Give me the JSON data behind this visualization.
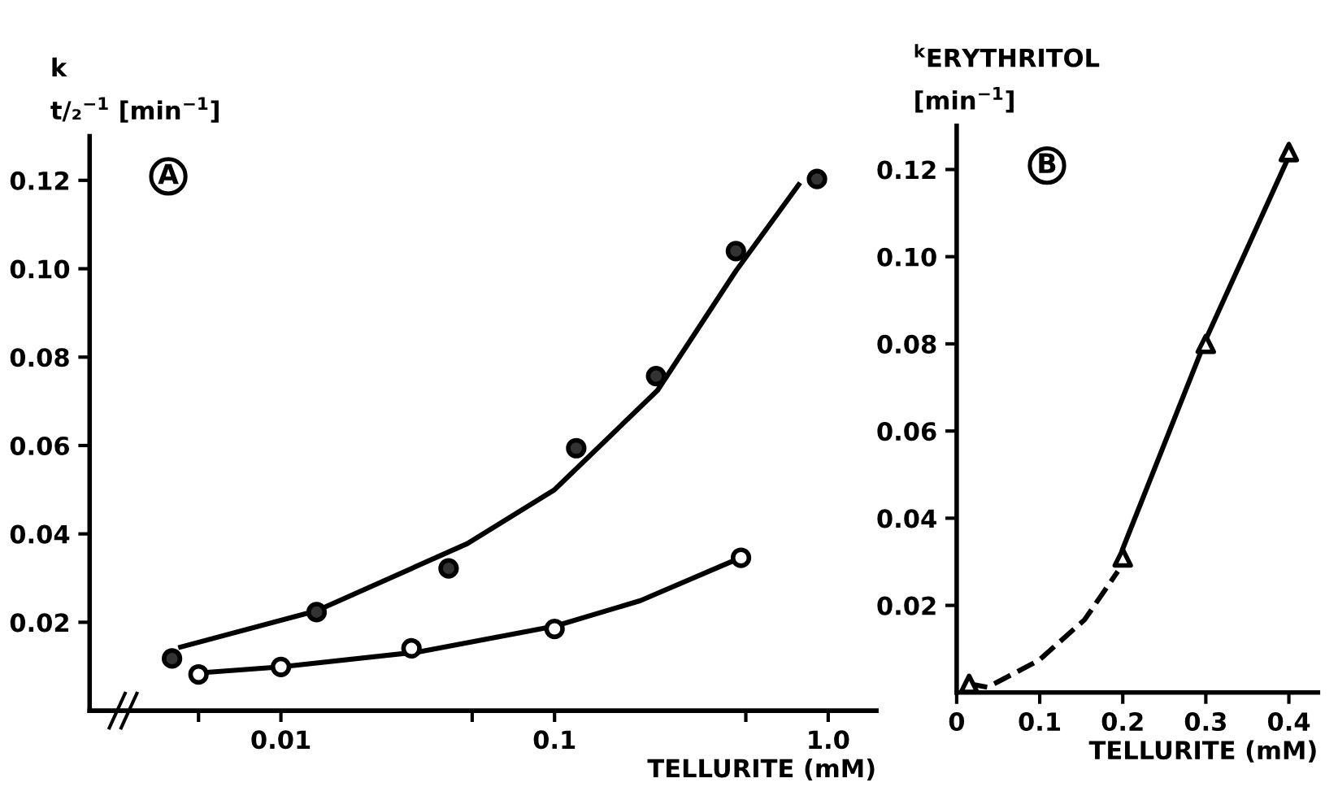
{
  "chart_data": [
    {
      "type": "scatter",
      "xlabel": "TELLURITE (mM)",
      "ylabel": "k\nt/₂$^{−1}$ [min$^{−1}$]",
      "annotations": [
        "A"
      ],
      "log": "x",
      "xlim": [
        0.002,
        1.5
      ],
      "xticks": [
        {
          "value": 0.005,
          "label": null
        },
        0.01,
        {
          "value": 0.05,
          "label": null
        },
        0.1,
        {
          "value": 0.5,
          "label": null
        },
        {
          "value": 1,
          "label": "1.0"
        }
      ],
      "ylim": [
        0,
        0.13
      ],
      "yticks": [
        0.02,
        0.04,
        0.06,
        0.08,
        {
          "value": 0.1,
          "label": "0.10"
        },
        0.12
      ],
      "grid": false,
      "legend": false,
      "series": [
        {
          "type": "line",
          "color": "#000000",
          "marker": "none",
          "line_style": "solid",
          "x": [
            0.0043,
            0.0135,
            0.048,
            0.1,
            0.238,
            0.46,
            0.78
          ],
          "values": [
            0.0144,
            0.0226,
            0.0378,
            0.05,
            0.0725,
            0.0995,
            0.119
          ]
        },
        {
          "type": "line",
          "color": "#000000",
          "marker": "none",
          "line_style": "solid",
          "x": [
            0.0052,
            0.01,
            0.032,
            0.1,
            0.206,
            0.45
          ],
          "values": [
            0.0086,
            0.0099,
            0.0133,
            0.0191,
            0.0249,
            0.0339
          ]
        },
        {
          "color": "#333333",
          "marker": "circle",
          "x": [
            0.004,
            0.0135,
            0.041,
            0.12,
            0.235,
            0.46,
            0.91
          ],
          "values": [
            0.0118,
            0.0223,
            0.0322,
            0.0594,
            0.0757,
            0.104,
            0.1203
          ]
        },
        {
          "color": "#ffffff",
          "marker": "circle",
          "x": [
            0.005,
            0.01,
            0.03,
            0.1,
            0.48
          ],
          "values": [
            0.0082,
            0.0099,
            0.0141,
            0.0185,
            0.0346
          ]
        }
      ]
    },
    {
      "type": "scatter",
      "xlabel": "TELLURITE (mM)",
      "ylabel": "$^{k}$ERYTHRITOL\n[min$^{−1}$]",
      "annotations": [
        "B"
      ],
      "xlim": [
        0,
        0.435
      ],
      "xticks": [
        0,
        0.1,
        0.2,
        0.3,
        0.4
      ],
      "ylim": [
        0,
        0.13
      ],
      "yticks": [
        0.02,
        0.04,
        0.06,
        0.08,
        {
          "value": 0.1,
          "label": "0.10"
        },
        0.12
      ],
      "grid": false,
      "legend": false,
      "series": [
        {
          "type": "line",
          "color": "#000000",
          "marker": "none",
          "line_style": "dashed",
          "x": [
            0.015,
            0.037,
            0.099,
            0.154,
            0.194
          ],
          "values": [
            0.002,
            0.0012,
            0.0074,
            0.0167,
            0.0278
          ]
        },
        {
          "type": "line",
          "color": "#000000",
          "marker": "none",
          "line_style": "solid",
          "x": [
            0.2,
            0.3,
            0.4
          ],
          "values": [
            0.033,
            0.081,
            0.123
          ]
        },
        {
          "color": "#ffffff",
          "marker": "triangle",
          "x": [
            0.015,
            0.2,
            0.3,
            0.4
          ],
          "values": [
            0.002,
            0.031,
            0.08,
            0.124
          ]
        }
      ]
    }
  ]
}
